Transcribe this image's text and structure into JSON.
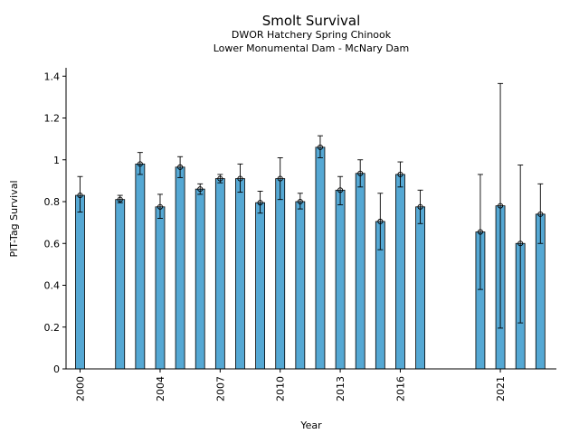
{
  "chart_data": {
    "type": "bar",
    "title": "Smolt Survival",
    "subtitle_lines": [
      "DWOR Hatchery Spring Chinook",
      "Lower Monumental Dam - McNary Dam"
    ],
    "xlabel": "Year",
    "ylabel": "PIT-Tag Survival",
    "xlim": [
      1999.3,
      2023.8
    ],
    "ylim": [
      0,
      1.44
    ],
    "yticks": [
      0,
      0.2,
      0.4,
      0.6,
      0.8,
      1,
      1.2,
      1.4
    ],
    "ytick_labels": [
      "0",
      "0.2",
      "0.4",
      "0.6",
      "0.8",
      "1",
      "1.2",
      "1.4"
    ],
    "xticks": [
      2000,
      2004,
      2007,
      2010,
      2013,
      2016,
      2021
    ],
    "xtick_labels": [
      "2000",
      "2004",
      "2007",
      "2010",
      "2013",
      "2016",
      "2021"
    ],
    "bar_color": "#55a8d4",
    "grid": false,
    "points": [
      {
        "year": 2000,
        "value": 0.83,
        "lower": 0.75,
        "upper": 0.92
      },
      {
        "year": 2002,
        "value": 0.81,
        "lower": 0.795,
        "upper": 0.83
      },
      {
        "year": 2003,
        "value": 0.98,
        "lower": 0.93,
        "upper": 1.035
      },
      {
        "year": 2004,
        "value": 0.775,
        "lower": 0.72,
        "upper": 0.835
      },
      {
        "year": 2005,
        "value": 0.965,
        "lower": 0.915,
        "upper": 1.015
      },
      {
        "year": 2006,
        "value": 0.86,
        "lower": 0.835,
        "upper": 0.885
      },
      {
        "year": 2007,
        "value": 0.91,
        "lower": 0.89,
        "upper": 0.93
      },
      {
        "year": 2008,
        "value": 0.91,
        "lower": 0.845,
        "upper": 0.98
      },
      {
        "year": 2009,
        "value": 0.795,
        "lower": 0.745,
        "upper": 0.85
      },
      {
        "year": 2010,
        "value": 0.91,
        "lower": 0.81,
        "upper": 1.01
      },
      {
        "year": 2011,
        "value": 0.8,
        "lower": 0.765,
        "upper": 0.84
      },
      {
        "year": 2012,
        "value": 1.06,
        "lower": 1.01,
        "upper": 1.115
      },
      {
        "year": 2013,
        "value": 0.855,
        "lower": 0.785,
        "upper": 0.92
      },
      {
        "year": 2014,
        "value": 0.935,
        "lower": 0.87,
        "upper": 1.0
      },
      {
        "year": 2015,
        "value": 0.705,
        "lower": 0.57,
        "upper": 0.84
      },
      {
        "year": 2016,
        "value": 0.93,
        "lower": 0.87,
        "upper": 0.99
      },
      {
        "year": 2017,
        "value": 0.775,
        "lower": 0.695,
        "upper": 0.855
      },
      {
        "year": 2020,
        "value": 0.655,
        "lower": 0.38,
        "upper": 0.93
      },
      {
        "year": 2021,
        "value": 0.78,
        "lower": 0.195,
        "upper": 1.365
      },
      {
        "year": 2022,
        "value": 0.6,
        "lower": 0.22,
        "upper": 0.975
      },
      {
        "year": 2023,
        "value": 0.74,
        "lower": 0.6,
        "upper": 0.885
      }
    ]
  }
}
